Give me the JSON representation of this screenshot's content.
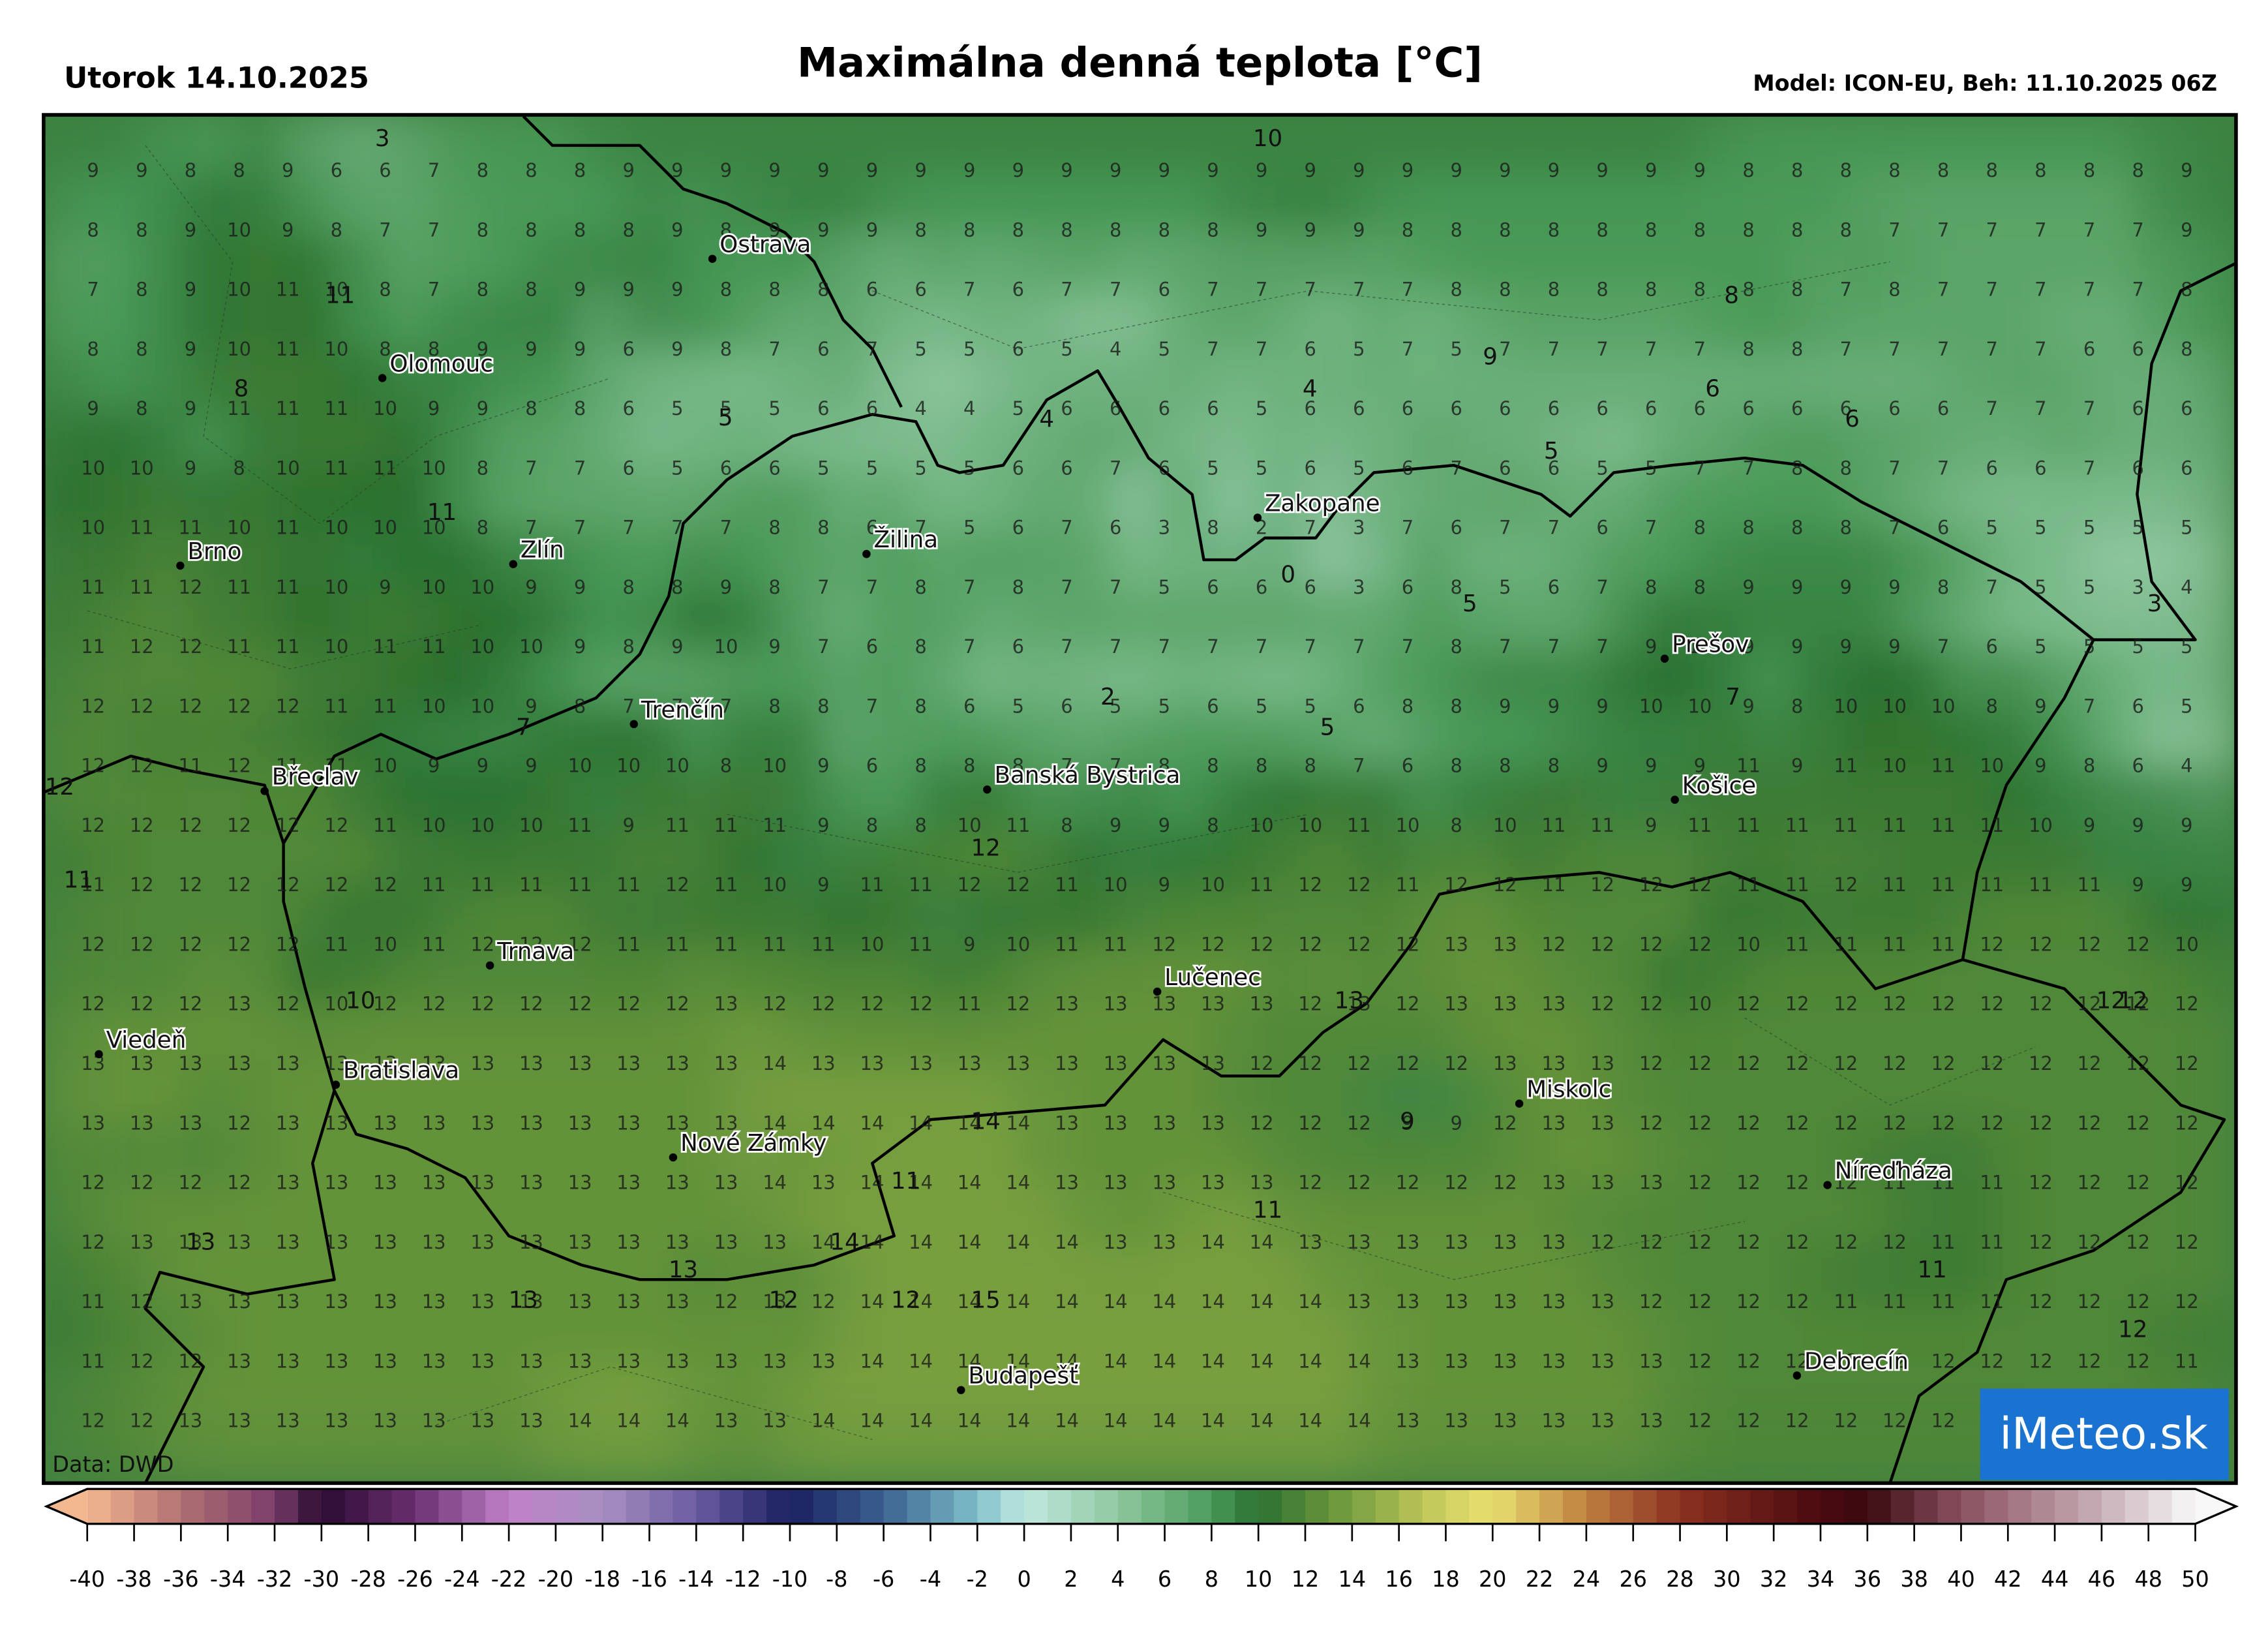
{
  "header": {
    "date": "Utorok 14.10.2025",
    "title": "Maximálna denná teplota [°C]",
    "model": "Model: ICON-EU, Beh: 11.10.2025 06Z"
  },
  "map": {
    "source": "Data: DWD",
    "logo": "iMeteo.sk",
    "grid": [
      [
        9,
        9,
        8,
        8,
        9,
        6,
        6,
        7,
        8,
        8,
        8,
        9,
        9,
        9,
        9,
        9,
        9,
        9,
        9,
        9,
        9,
        9,
        9,
        9,
        9,
        9,
        9,
        9,
        9,
        9,
        9,
        9,
        9,
        9,
        8,
        8,
        8,
        8,
        8,
        8,
        8,
        8,
        8,
        9
      ],
      [
        8,
        8,
        9,
        10,
        9,
        8,
        7,
        7,
        8,
        8,
        8,
        8,
        9,
        8,
        9,
        9,
        9,
        8,
        8,
        8,
        8,
        8,
        8,
        8,
        9,
        9,
        9,
        8,
        8,
        8,
        8,
        8,
        8,
        8,
        8,
        8,
        8,
        7,
        7,
        7,
        7,
        7,
        7,
        9
      ],
      [
        7,
        8,
        9,
        10,
        11,
        10,
        8,
        7,
        8,
        8,
        9,
        9,
        9,
        8,
        8,
        8,
        6,
        6,
        7,
        6,
        7,
        7,
        6,
        7,
        7,
        7,
        7,
        7,
        8,
        8,
        8,
        8,
        8,
        8,
        8,
        8,
        7,
        8,
        7,
        7,
        7,
        7,
        7,
        8
      ],
      [
        8,
        8,
        9,
        10,
        11,
        10,
        8,
        8,
        9,
        9,
        9,
        6,
        9,
        8,
        7,
        6,
        7,
        5,
        5,
        6,
        5,
        4,
        5,
        7,
        7,
        6,
        5,
        7,
        5,
        7,
        7,
        7,
        7,
        7,
        8,
        8,
        7,
        7,
        7,
        7,
        7,
        6,
        6,
        8
      ],
      [
        9,
        8,
        9,
        11,
        11,
        11,
        10,
        9,
        9,
        8,
        8,
        6,
        5,
        5,
        5,
        6,
        6,
        4,
        4,
        5,
        6,
        6,
        6,
        6,
        5,
        6,
        6,
        6,
        6,
        6,
        6,
        6,
        6,
        6,
        6,
        6,
        6,
        6,
        6,
        7,
        7,
        7,
        6,
        6
      ],
      [
        10,
        10,
        9,
        8,
        10,
        11,
        11,
        10,
        8,
        7,
        7,
        6,
        5,
        6,
        6,
        5,
        5,
        5,
        5,
        6,
        6,
        7,
        6,
        5,
        5,
        6,
        5,
        6,
        7,
        6,
        6,
        5,
        5,
        7,
        7,
        8,
        8,
        7,
        7,
        6,
        6,
        7,
        6,
        6
      ],
      [
        10,
        11,
        11,
        10,
        11,
        10,
        10,
        10,
        8,
        7,
        7,
        7,
        7,
        7,
        8,
        8,
        6,
        7,
        5,
        6,
        7,
        6,
        3,
        8,
        2,
        7,
        3,
        7,
        6,
        7,
        7,
        6,
        7,
        8,
        8,
        8,
        8,
        7,
        6,
        5,
        5,
        5,
        5,
        5
      ],
      [
        11,
        11,
        12,
        11,
        11,
        10,
        9,
        10,
        10,
        9,
        9,
        8,
        8,
        9,
        8,
        7,
        7,
        8,
        7,
        8,
        7,
        7,
        5,
        6,
        6,
        6,
        3,
        6,
        8,
        5,
        6,
        7,
        8,
        8,
        9,
        9,
        9,
        9,
        8,
        7,
        5,
        5,
        3,
        4
      ],
      [
        11,
        12,
        12,
        11,
        11,
        10,
        11,
        11,
        10,
        10,
        9,
        8,
        9,
        10,
        9,
        7,
        6,
        8,
        7,
        6,
        7,
        7,
        7,
        7,
        7,
        7,
        7,
        7,
        8,
        7,
        7,
        7,
        9,
        10,
        9,
        9,
        9,
        9,
        7,
        6,
        5,
        5,
        5,
        5
      ],
      [
        12,
        12,
        12,
        12,
        12,
        11,
        11,
        10,
        10,
        9,
        8,
        7,
        7,
        7,
        8,
        8,
        7,
        8,
        6,
        5,
        6,
        5,
        5,
        6,
        5,
        5,
        6,
        8,
        8,
        9,
        9,
        9,
        10,
        10,
        9,
        8,
        10,
        10,
        10,
        8,
        9,
        7,
        6,
        5
      ],
      [
        12,
        12,
        11,
        12,
        11,
        11,
        10,
        9,
        9,
        9,
        10,
        10,
        10,
        8,
        10,
        9,
        6,
        8,
        8,
        8,
        7,
        7,
        8,
        8,
        8,
        8,
        7,
        6,
        8,
        8,
        8,
        9,
        9,
        9,
        11,
        9,
        11,
        10,
        11,
        10,
        9,
        8,
        6,
        4
      ],
      [
        12,
        12,
        12,
        12,
        12,
        12,
        11,
        10,
        10,
        10,
        11,
        9,
        11,
        11,
        11,
        9,
        8,
        8,
        10,
        11,
        8,
        9,
        9,
        8,
        10,
        10,
        11,
        10,
        8,
        10,
        11,
        11,
        9,
        11,
        11,
        11,
        11,
        11,
        11,
        11,
        10,
        9,
        9,
        9
      ],
      [
        11,
        12,
        12,
        12,
        12,
        12,
        12,
        11,
        11,
        11,
        11,
        11,
        12,
        11,
        10,
        9,
        11,
        11,
        12,
        12,
        11,
        10,
        9,
        10,
        11,
        12,
        12,
        11,
        12,
        12,
        11,
        12,
        12,
        12,
        11,
        11,
        12,
        11,
        11,
        11,
        11,
        11,
        9,
        9
      ],
      [
        12,
        12,
        12,
        12,
        12,
        11,
        10,
        11,
        12,
        12,
        12,
        11,
        11,
        11,
        11,
        11,
        10,
        11,
        9,
        10,
        11,
        11,
        12,
        12,
        12,
        12,
        12,
        12,
        13,
        13,
        12,
        12,
        12,
        12,
        10,
        11,
        11,
        11,
        11,
        12,
        12,
        12,
        12,
        10
      ],
      [
        12,
        12,
        12,
        13,
        12,
        10,
        12,
        12,
        12,
        12,
        12,
        12,
        12,
        13,
        12,
        12,
        12,
        12,
        11,
        12,
        13,
        13,
        13,
        13,
        13,
        12,
        13,
        12,
        13,
        13,
        13,
        12,
        12,
        10,
        12,
        12,
        12,
        12,
        12,
        12,
        12,
        12,
        12,
        12
      ],
      [
        13,
        13,
        13,
        13,
        13,
        13,
        13,
        13,
        13,
        13,
        13,
        13,
        13,
        13,
        14,
        13,
        13,
        13,
        13,
        13,
        13,
        13,
        13,
        13,
        12,
        12,
        12,
        12,
        12,
        13,
        13,
        13,
        12,
        12,
        12,
        12,
        12,
        12,
        12,
        12,
        12,
        12,
        12,
        12
      ],
      [
        13,
        13,
        13,
        12,
        13,
        13,
        13,
        13,
        13,
        13,
        13,
        13,
        13,
        13,
        14,
        14,
        14,
        14,
        14,
        14,
        13,
        13,
        13,
        13,
        12,
        12,
        12,
        9,
        9,
        12,
        13,
        13,
        12,
        12,
        12,
        12,
        12,
        12,
        12,
        12,
        12,
        12,
        12,
        12
      ],
      [
        12,
        12,
        12,
        12,
        13,
        13,
        13,
        13,
        13,
        13,
        13,
        13,
        13,
        13,
        14,
        13,
        14,
        14,
        14,
        14,
        13,
        13,
        13,
        13,
        13,
        12,
        12,
        12,
        12,
        12,
        13,
        13,
        13,
        12,
        12,
        12,
        12,
        11,
        11,
        11,
        12,
        12,
        12,
        12
      ],
      [
        12,
        13,
        13,
        13,
        13,
        13,
        13,
        13,
        13,
        13,
        13,
        13,
        13,
        13,
        13,
        14,
        14,
        14,
        14,
        14,
        14,
        13,
        13,
        14,
        14,
        13,
        13,
        13,
        13,
        13,
        13,
        12,
        12,
        12,
        12,
        12,
        12,
        12,
        11,
        11,
        12,
        12,
        12,
        12
      ],
      [
        11,
        12,
        13,
        13,
        13,
        13,
        13,
        13,
        13,
        13,
        13,
        13,
        13,
        12,
        13,
        12,
        14,
        14,
        14,
        14,
        14,
        14,
        14,
        14,
        14,
        14,
        13,
        13,
        13,
        13,
        13,
        13,
        12,
        12,
        12,
        12,
        11,
        11,
        11,
        11,
        12,
        12,
        12,
        12
      ],
      [
        11,
        12,
        12,
        13,
        13,
        13,
        13,
        13,
        13,
        13,
        13,
        13,
        13,
        13,
        13,
        13,
        14,
        14,
        14,
        14,
        14,
        14,
        14,
        14,
        14,
        14,
        14,
        13,
        13,
        13,
        13,
        13,
        13,
        12,
        12,
        12,
        12,
        12,
        12,
        12,
        12,
        12,
        12,
        11
      ],
      [
        12,
        12,
        13,
        13,
        13,
        13,
        13,
        13,
        13,
        13,
        14,
        14,
        14,
        13,
        13,
        14,
        14,
        14,
        14,
        14,
        14,
        14,
        14,
        14,
        14,
        14,
        14,
        13,
        13,
        13,
        13,
        13,
        13,
        12,
        12,
        12,
        12,
        12,
        12,
        12,
        12,
        12,
        12,
        12
      ]
    ],
    "extrema": [
      3,
      10,
      11,
      8,
      8,
      9,
      4,
      6,
      6,
      4,
      5,
      5,
      11,
      0,
      5,
      3,
      2,
      7,
      5,
      7,
      12,
      12,
      11,
      10,
      13,
      12,
      12,
      9,
      14,
      11,
      11,
      13,
      14,
      13,
      11,
      13,
      12,
      12,
      15,
      12
    ],
    "cities": [
      "Ostrava",
      "Olomouc",
      "Brno",
      "Zlín",
      "Žilina",
      "Zakopane",
      "Prešov",
      "Trenčín",
      "Břeclav",
      "Banská Bystrica",
      "Košice",
      "Trnava",
      "Lučenec",
      "Viedeň",
      "Bratislava",
      "Miskolc",
      "Nové Zámky",
      "Níreďháza",
      "Debrecín",
      "Budapešť"
    ]
  },
  "colorbar": {
    "lim": [
      -40,
      50
    ],
    "ticks": [
      -40,
      -38,
      -36,
      -34,
      -32,
      -30,
      -28,
      -26,
      -24,
      -22,
      -20,
      -18,
      -16,
      -14,
      -12,
      -10,
      -8,
      -6,
      -4,
      -2,
      0,
      2,
      4,
      6,
      8,
      10,
      12,
      14,
      16,
      18,
      20,
      22,
      24,
      26,
      28,
      30,
      32,
      34,
      36,
      38,
      40,
      42,
      44,
      46,
      48,
      50
    ],
    "stops": [
      [
        -40,
        "#f4b890"
      ],
      [
        -36,
        "#b07070"
      ],
      [
        -32,
        "#7a3d6a"
      ],
      [
        -30,
        "#2a0a30"
      ],
      [
        -26,
        "#6a3070"
      ],
      [
        -22,
        "#c080c8"
      ],
      [
        -18,
        "#a890c0"
      ],
      [
        -14,
        "#6a5aa0"
      ],
      [
        -10,
        "#1a2060"
      ],
      [
        -6,
        "#3a6090"
      ],
      [
        -2,
        "#80c0c8"
      ],
      [
        0,
        "#c0e8e0"
      ],
      [
        4,
        "#90c8a0"
      ],
      [
        8,
        "#4a9a5a"
      ],
      [
        10,
        "#2a7030"
      ],
      [
        14,
        "#7aa040"
      ],
      [
        18,
        "#d0d060"
      ],
      [
        20,
        "#e8e070"
      ],
      [
        24,
        "#c08040"
      ],
      [
        28,
        "#8a3020"
      ],
      [
        34,
        "#4a0a10"
      ],
      [
        36,
        "#3a0a10"
      ],
      [
        40,
        "#8a5060"
      ],
      [
        46,
        "#c8b0b8"
      ],
      [
        50,
        "#f8f8f8"
      ]
    ]
  }
}
